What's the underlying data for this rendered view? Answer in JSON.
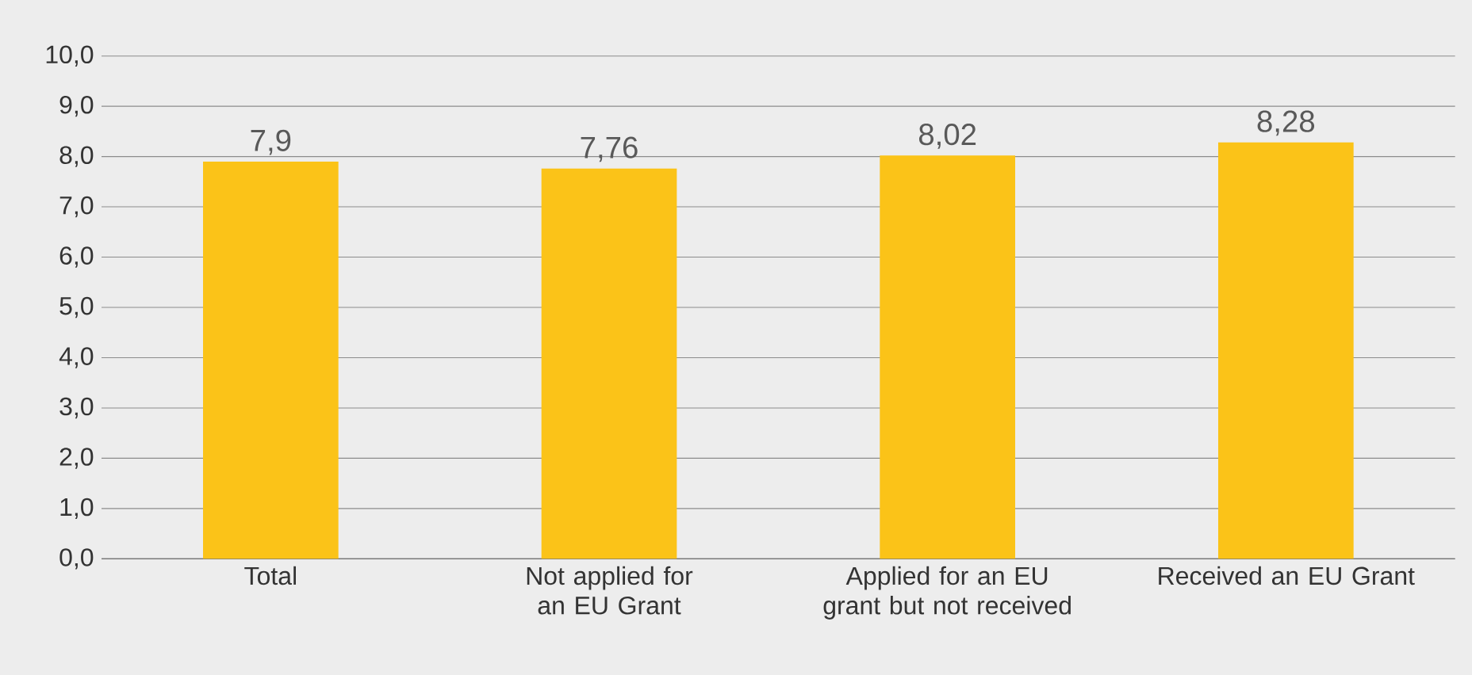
{
  "chart_data": {
    "type": "bar",
    "categories": [
      "Total",
      "Not applied for an EU Grant",
      "Applied for an EU grant but not received",
      "Received an EU Grant"
    ],
    "values": [
      7.9,
      7.76,
      8.02,
      8.28
    ],
    "value_labels": [
      "7,9",
      "7,76",
      "8,02",
      "8,28"
    ],
    "color": "#fbc318",
    "ylim": [
      0,
      10
    ],
    "yticks": [
      {
        "value": 0,
        "label": "0,0"
      },
      {
        "value": 1,
        "label": "1,0"
      },
      {
        "value": 2,
        "label": "2,0"
      },
      {
        "value": 3,
        "label": "3,0"
      },
      {
        "value": 4,
        "label": "4,0"
      },
      {
        "value": 5,
        "label": "5,0"
      },
      {
        "value": 6,
        "label": "6,0"
      },
      {
        "value": 7,
        "label": "7,0"
      },
      {
        "value": 8,
        "label": "8,0"
      },
      {
        "value": 9,
        "label": "9,0"
      },
      {
        "value": 10,
        "label": "10,0"
      }
    ],
    "grid": "y"
  }
}
